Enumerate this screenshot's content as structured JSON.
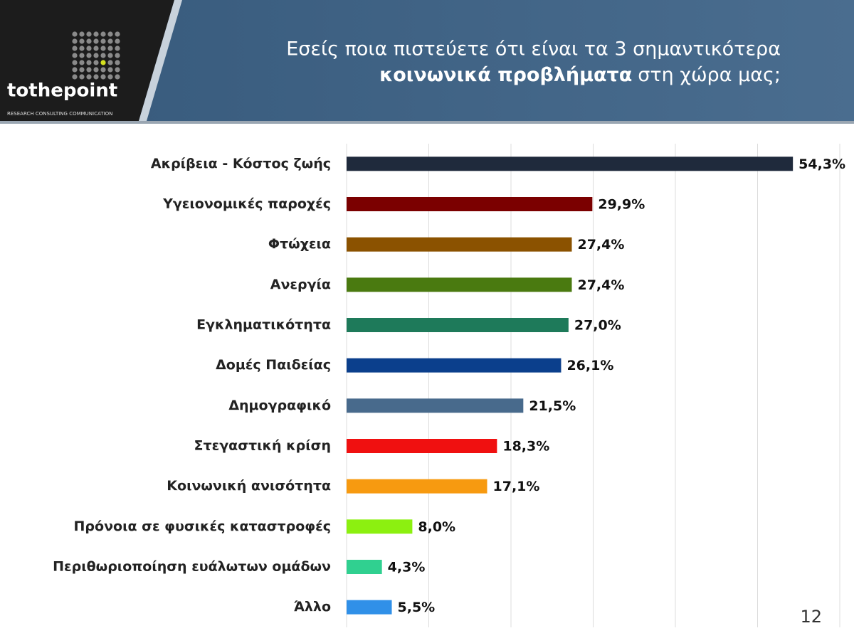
{
  "chart_data": {
    "type": "barh",
    "title_line1": "Εσείς ποια πιστεύετε ότι είναι τα 3 σημαντικότερα",
    "title_line2_bold": "κοινωνικά προβλήματα",
    "title_line2": "στη χώρα μας;",
    "logo": "tothepoint",
    "logo_tagline": "RESEARCH CONSULTING COMMUNICATION",
    "page_number": "12",
    "categories": [
      "Ακρίβεια - Κόστος ζωής",
      "Υγειονομικές παροχές",
      "Φτώχεια",
      "Ανεργία",
      "Εγκληματικότητα",
      "Δομές Παιδείας",
      "Δημογραφικό",
      "Στεγαστική κρίση",
      "Κοινωνική ανισότητα",
      "Πρόνοια σε φυσικές καταστροφές",
      "Περιθωριοποίηση ευάλωτων ομάδων",
      "Άλλο"
    ],
    "values": [
      54.3,
      29.9,
      27.4,
      27.4,
      27.0,
      26.1,
      21.5,
      18.3,
      17.1,
      8.0,
      4.3,
      5.5
    ],
    "value_labels": [
      "54,3%",
      "29,9%",
      "27,4%",
      "27,4%",
      "27,0%",
      "26,1%",
      "21,5%",
      "18,3%",
      "17,1%",
      "8,0%",
      "4,3%",
      "5,5%"
    ],
    "colors": [
      "#1f2a3c",
      "#7b0000",
      "#8b5200",
      "#4a7a10",
      "#1e7a5a",
      "#0b3f8c",
      "#486a8c",
      "#f01010",
      "#f79a10",
      "#8cf010",
      "#30d090",
      "#3090e8"
    ],
    "xlim": [
      0,
      60
    ],
    "xticks": [
      0,
      10,
      20,
      30,
      40,
      50,
      60
    ],
    "grid": true
  }
}
